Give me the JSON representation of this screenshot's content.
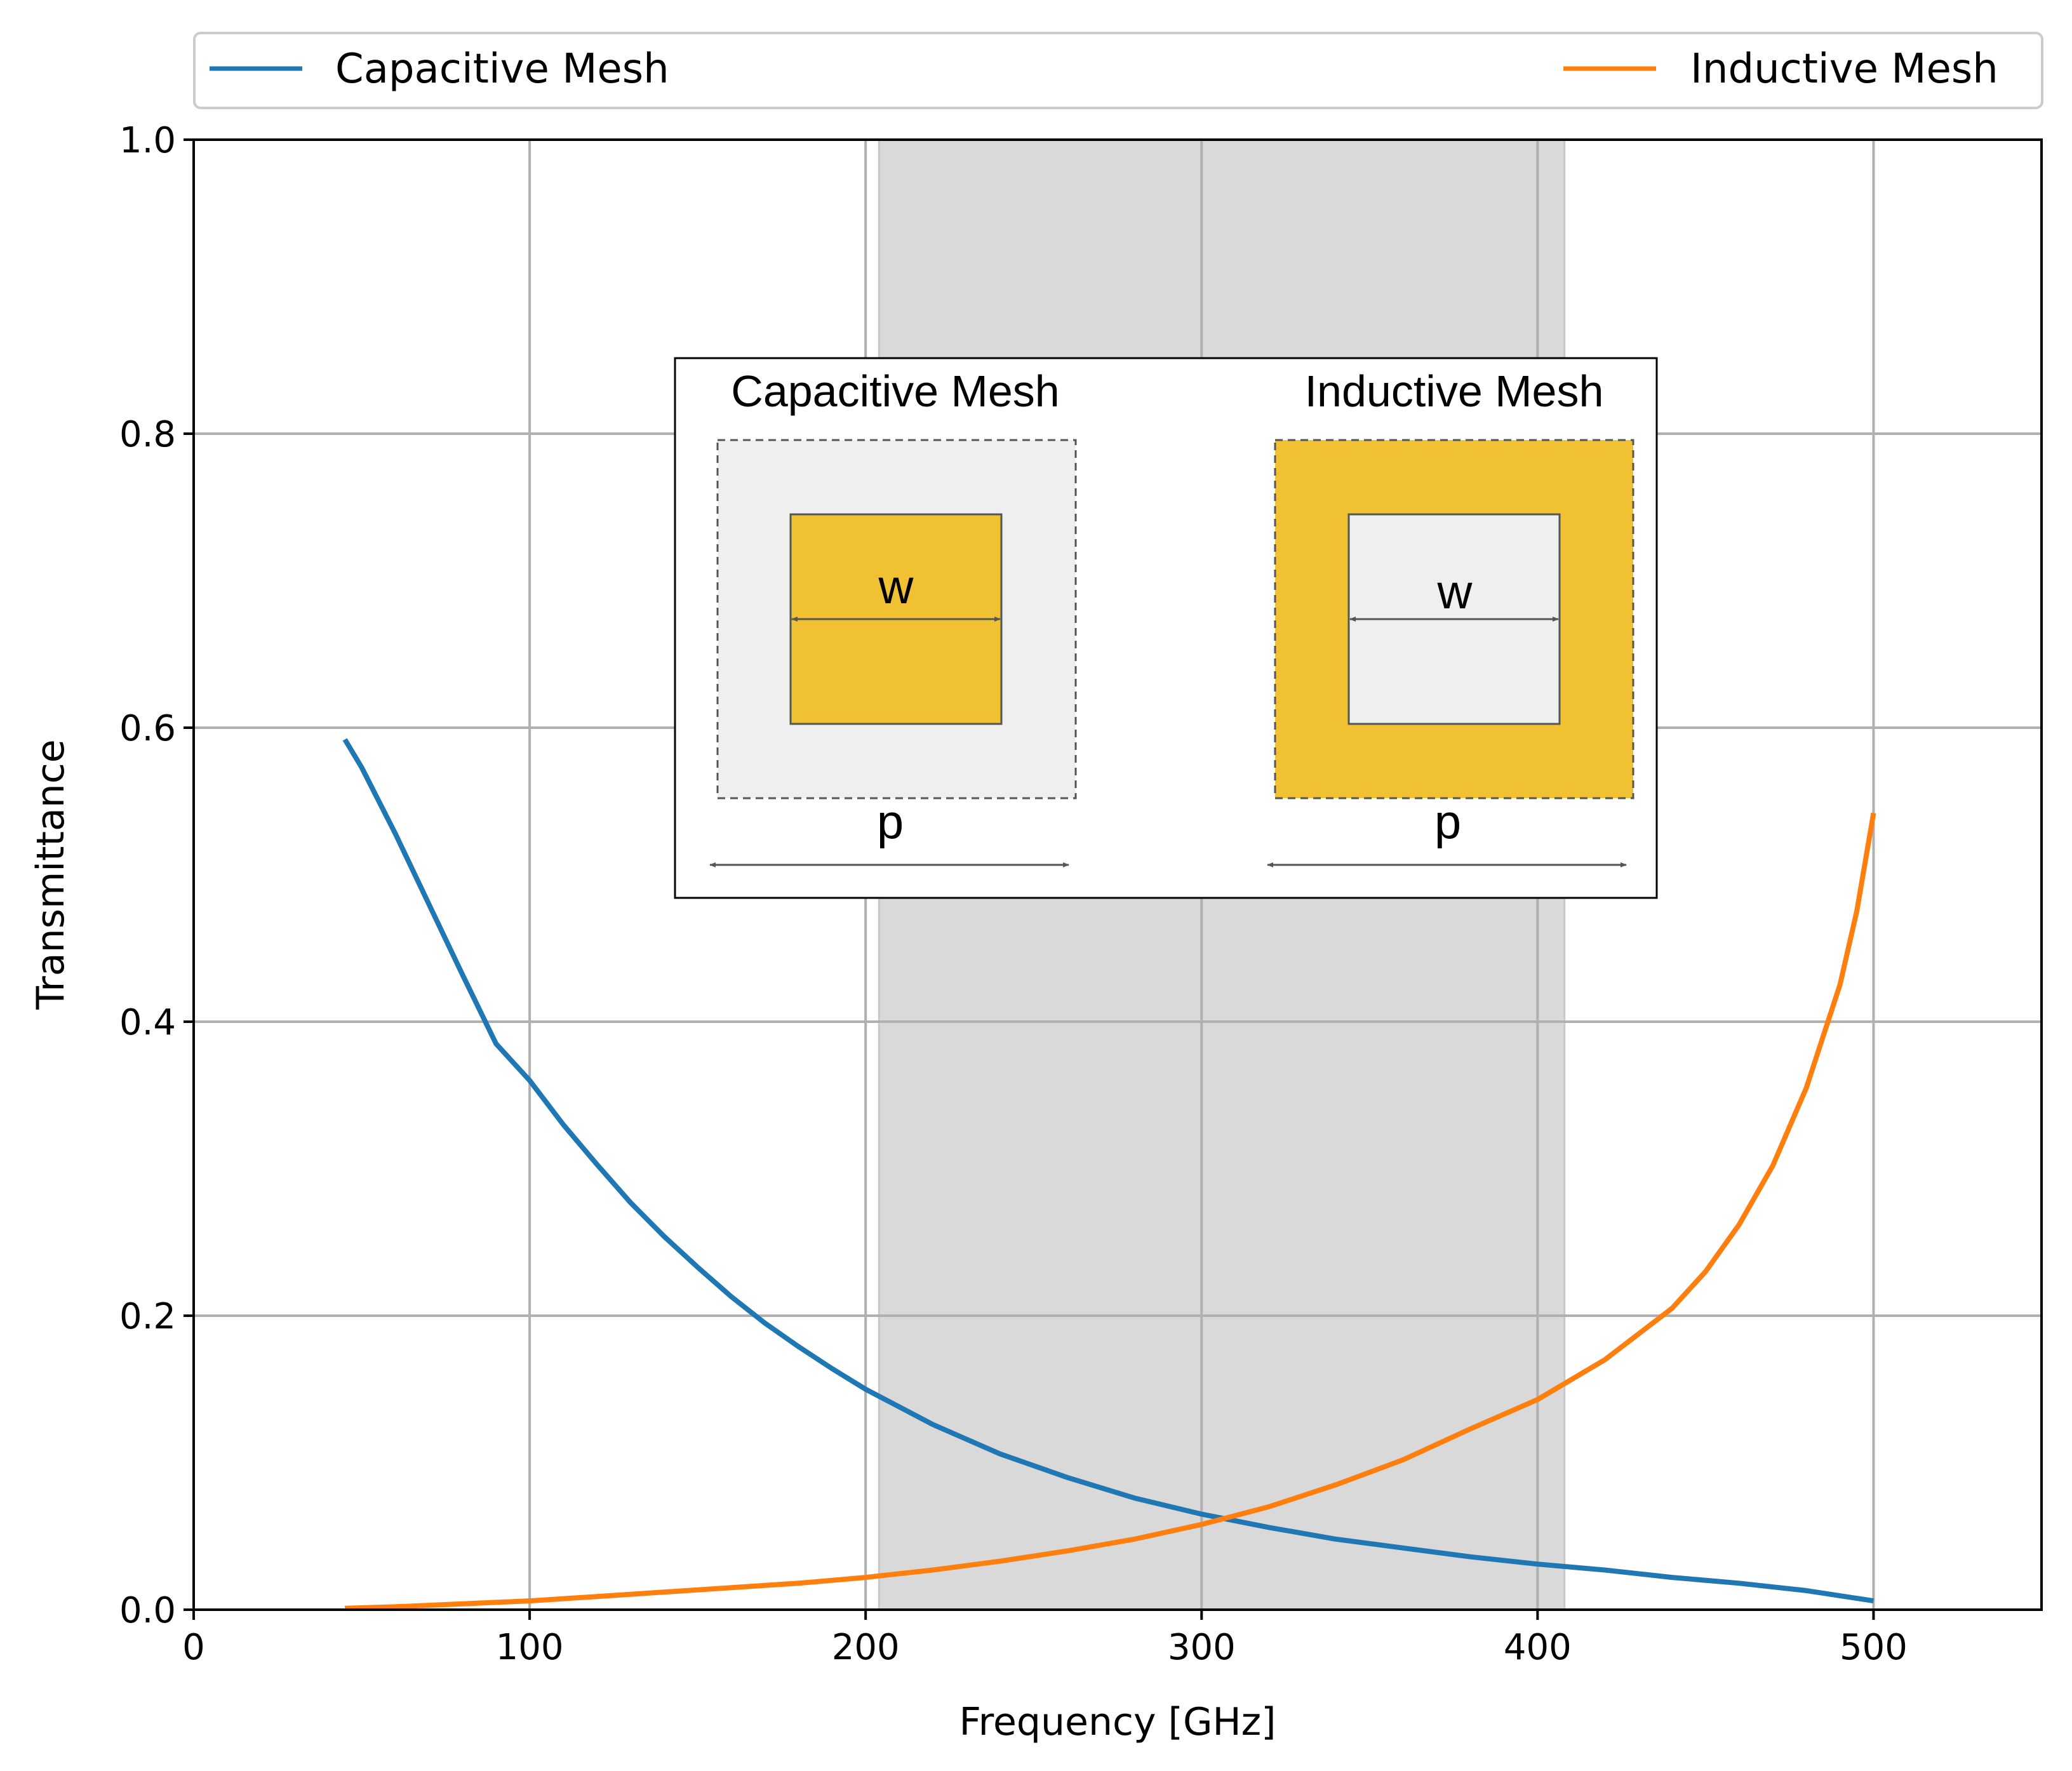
{
  "chart_data": {
    "type": "line",
    "title": "",
    "xlabel": "Frequency [GHz]",
    "ylabel": "Transmittance",
    "xlim": [
      0,
      550
    ],
    "ylim": [
      0.0,
      1.0
    ],
    "xticks": [
      0,
      100,
      200,
      300,
      400,
      500
    ],
    "xtick_labels": [
      "0",
      "100",
      "200",
      "300",
      "400",
      "500"
    ],
    "yticks": [
      0.0,
      0.2,
      0.4,
      0.6,
      0.8,
      1.0
    ],
    "ytick_labels": [
      "0.0",
      "0.2",
      "0.4",
      "0.6",
      "0.8",
      "1.0"
    ],
    "grid": true,
    "legend_position": "top, above plot",
    "shaded_band": {
      "x_start": 204,
      "x_end": 408,
      "color": "#d9d9d9"
    },
    "series": [
      {
        "name": "Capacitive Mesh",
        "color": "#1f77b4",
        "x": [
          45,
          50,
          60,
          70,
          80,
          90,
          100,
          110,
          120,
          130,
          140,
          150,
          160,
          170,
          180,
          190,
          200,
          220,
          240,
          260,
          280,
          300,
          320,
          340,
          360,
          380,
          400,
          420,
          440,
          460,
          480,
          500
        ],
        "y": [
          0.592,
          0.573,
          0.528,
          0.48,
          0.432,
          0.385,
          0.36,
          0.33,
          0.303,
          0.277,
          0.254,
          0.233,
          0.213,
          0.195,
          0.179,
          0.164,
          0.15,
          0.126,
          0.106,
          0.09,
          0.076,
          0.065,
          0.056,
          0.048,
          0.042,
          0.036,
          0.031,
          0.027,
          0.022,
          0.018,
          0.013,
          0.006
        ]
      },
      {
        "name": "Inductive Mesh",
        "color": "#ff7f0e",
        "x": [
          45,
          60,
          80,
          100,
          120,
          140,
          160,
          180,
          200,
          220,
          240,
          260,
          280,
          300,
          320,
          340,
          360,
          380,
          400,
          420,
          440,
          450,
          460,
          470,
          480,
          490,
          495,
          500
        ],
        "y": [
          0.001,
          0.002,
          0.004,
          0.006,
          0.009,
          0.012,
          0.015,
          0.018,
          0.022,
          0.027,
          0.033,
          0.04,
          0.048,
          0.058,
          0.07,
          0.085,
          0.102,
          0.123,
          0.143,
          0.17,
          0.205,
          0.23,
          0.262,
          0.302,
          0.355,
          0.425,
          0.475,
          0.542
        ]
      }
    ]
  },
  "inset": {
    "left_title": "Capacitive Mesh",
    "right_title": "Inductive Mesh",
    "width_label": "w",
    "pitch_label": "p",
    "metal_color": "#f0c233",
    "substrate_color": "#efefef"
  }
}
